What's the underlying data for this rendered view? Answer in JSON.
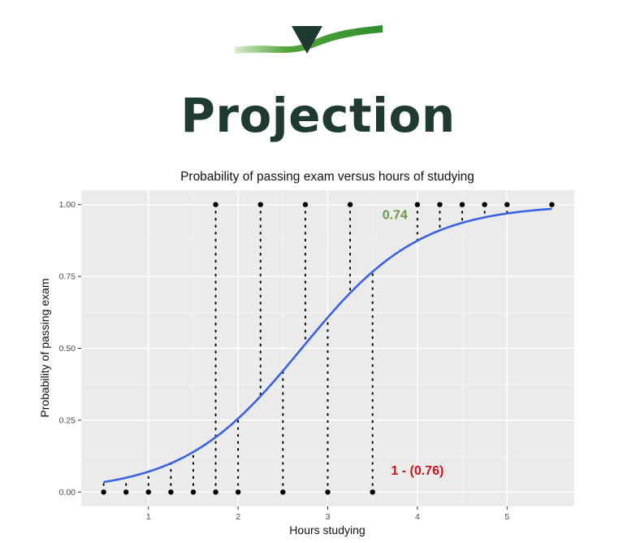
{
  "slide": {
    "heading": "Projection",
    "logo_icon": "green-swoosh-triangle-logo-icon"
  },
  "colors": {
    "curve": "#3b62e6",
    "annotation_green": "#6a9a45",
    "annotation_red": "#d0101a",
    "panel": "#ebebeb",
    "heading": "#1e3a33"
  },
  "chart_data": {
    "type": "scatter",
    "title": "Probability of passing exam versus hours of studying",
    "xlabel": "Hours studying",
    "ylabel": "Probability of passing exam",
    "xlim": [
      0.25,
      5.75
    ],
    "ylim": [
      -0.05,
      1.05
    ],
    "x_ticks": [
      1,
      2,
      3,
      4,
      5
    ],
    "x_tick_labels": [
      "1",
      "2",
      "3",
      "4",
      "5"
    ],
    "y_ticks": [
      0,
      0.25,
      0.5,
      0.75,
      1
    ],
    "y_tick_labels": [
      "0.00",
      "0.25",
      "0.50",
      "0.75",
      "1.00"
    ],
    "grid": true,
    "series": [
      {
        "type": "points",
        "x": [
          0.5,
          0.75,
          1.0,
          1.25,
          1.5,
          1.75,
          1.75,
          2.0,
          2.25,
          2.5,
          2.75,
          3.0,
          3.25,
          3.5,
          4.0,
          4.25,
          4.5,
          4.75,
          5.0,
          5.5
        ],
        "y": [
          0,
          0,
          0,
          0,
          0,
          0,
          1,
          0,
          1,
          0,
          1,
          0,
          1,
          0,
          1,
          1,
          1,
          1,
          1,
          1
        ]
      },
      {
        "type": "logistic-curve",
        "intercept": -4.0777,
        "slope": 1.5046,
        "x_range": [
          0.5,
          5.5
        ]
      }
    ],
    "annotations": [
      {
        "text": "0.74",
        "x": 3.75,
        "y": 0.95,
        "color": "#6a9a45"
      },
      {
        "text": "1 - (0.76)",
        "x": 4.0,
        "y": 0.06,
        "color": "#d0101a"
      }
    ]
  }
}
